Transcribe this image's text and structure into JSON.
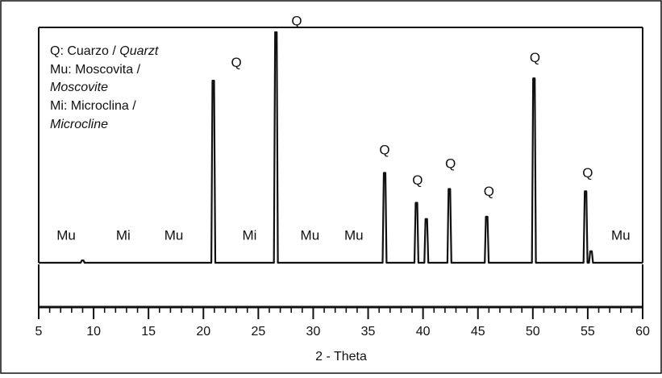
{
  "chart_data": {
    "type": "line",
    "title": "",
    "xlabel": "2 - Theta",
    "ylabel": "",
    "xlim": [
      5,
      60
    ],
    "x_ticks": [
      "5",
      "10",
      "15",
      "20",
      "25",
      "30",
      "35",
      "40",
      "45",
      "50",
      "55",
      "60"
    ],
    "legend": [
      {
        "label": "Q: Cuarzo / ",
        "italic": "Quarzt"
      },
      {
        "label": "Mu: Moscovita /",
        "italic": ""
      },
      {
        "label": "",
        "italic": "Moscovite"
      },
      {
        "label": "Mi: Microclina /",
        "italic": ""
      },
      {
        "label": "",
        "italic": "Microcline"
      }
    ],
    "peaks": [
      {
        "x": 9.0,
        "intensity": 0.01
      },
      {
        "x": 20.9,
        "intensity": 0.79
      },
      {
        "x": 26.6,
        "intensity": 1.0
      },
      {
        "x": 36.5,
        "intensity": 0.39
      },
      {
        "x": 39.4,
        "intensity": 0.26
      },
      {
        "x": 40.3,
        "intensity": 0.19
      },
      {
        "x": 42.4,
        "intensity": 0.32
      },
      {
        "x": 45.8,
        "intensity": 0.2
      },
      {
        "x": 50.1,
        "intensity": 0.8
      },
      {
        "x": 54.8,
        "intensity": 0.31
      },
      {
        "x": 55.3,
        "intensity": 0.05
      }
    ],
    "annotations": [
      {
        "text": "Q",
        "x": 23.0,
        "level": 0.85
      },
      {
        "text": "Q",
        "x": 28.5,
        "level": 1.03
      },
      {
        "text": "Q",
        "x": 36.5,
        "level": 0.47
      },
      {
        "text": "Q",
        "x": 39.5,
        "level": 0.34
      },
      {
        "text": "Q",
        "x": 42.5,
        "level": 0.41
      },
      {
        "text": "Q",
        "x": 46.0,
        "level": 0.29
      },
      {
        "text": "Q",
        "x": 50.2,
        "level": 0.87
      },
      {
        "text": "Q",
        "x": 55.0,
        "level": 0.37
      },
      {
        "text": "Mu",
        "x": 7.5,
        "level": 0.1
      },
      {
        "text": "Mi",
        "x": 12.7,
        "level": 0.1
      },
      {
        "text": "Mu",
        "x": 17.3,
        "level": 0.1
      },
      {
        "text": "Mi",
        "x": 24.2,
        "level": 0.1
      },
      {
        "text": "Mu",
        "x": 29.7,
        "level": 0.1
      },
      {
        "text": "Mu",
        "x": 33.7,
        "level": 0.1
      },
      {
        "text": "Mu",
        "x": 58.0,
        "level": 0.1
      }
    ],
    "grid": false,
    "legend_position": "top-left"
  }
}
